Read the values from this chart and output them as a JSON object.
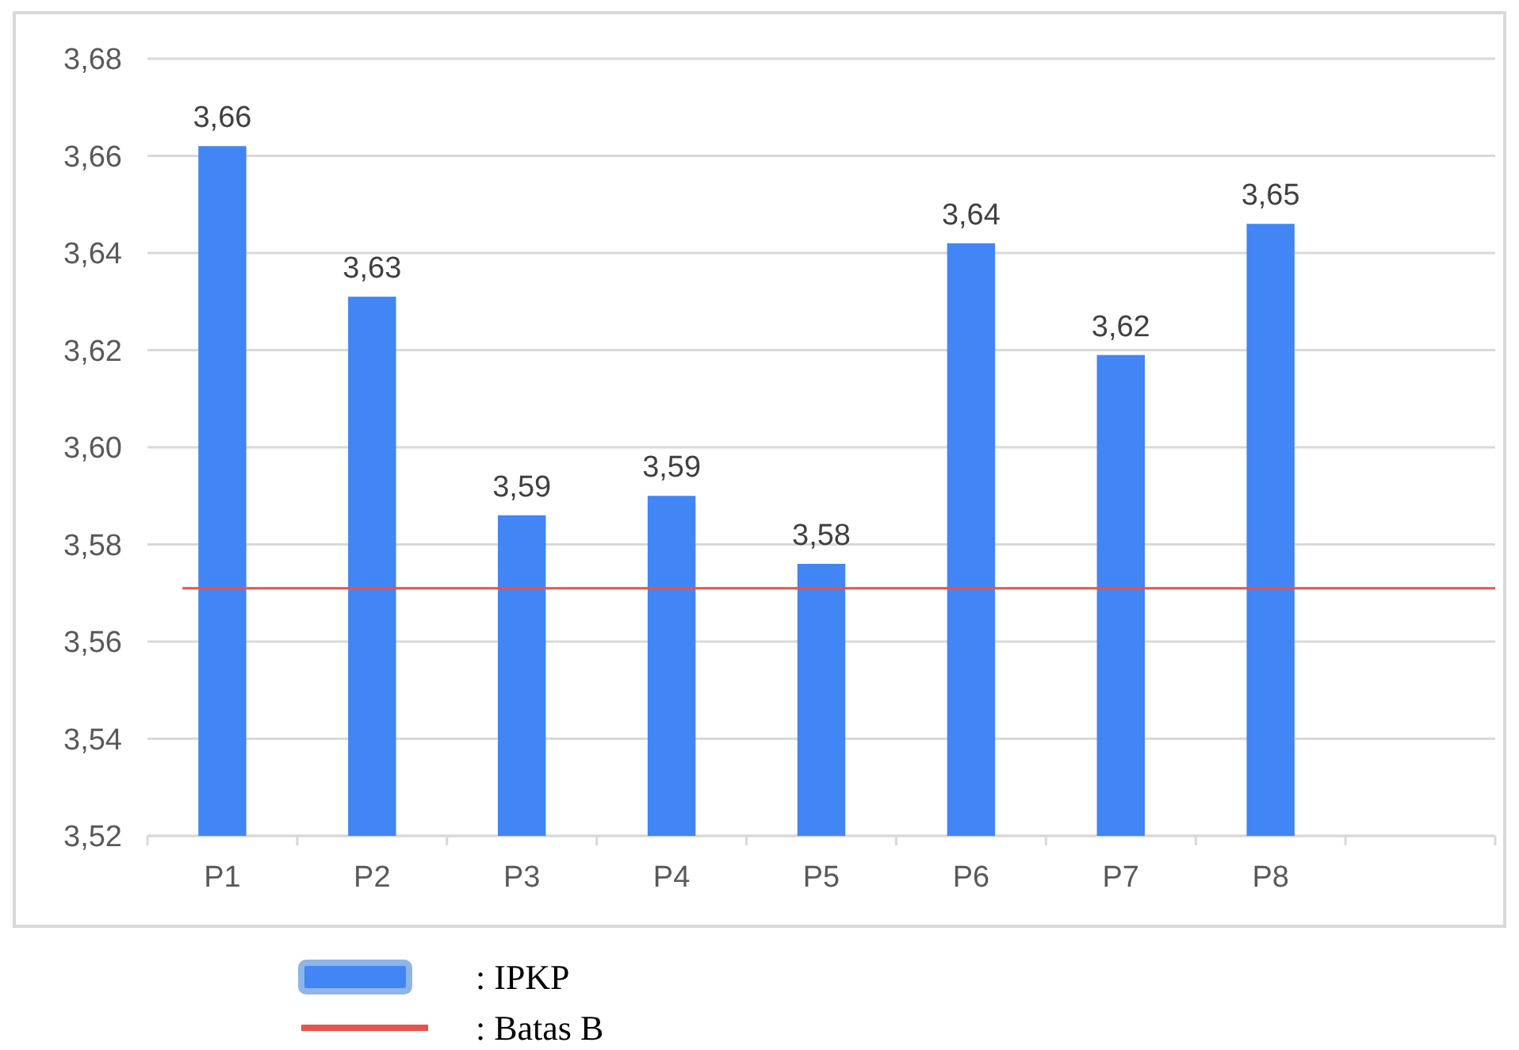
{
  "chart_data": {
    "type": "bar",
    "categories": [
      "P1",
      "P2",
      "P3",
      "P4",
      "P5",
      "P6",
      "P7",
      "P8",
      null
    ],
    "series": [
      {
        "name": ": IPKP",
        "color": "#4285f4",
        "values": [
          3.662,
          3.631,
          3.586,
          3.59,
          3.576,
          3.642,
          3.619,
          3.646,
          null
        ],
        "value_labels": [
          "3,66",
          "3,63",
          "3,59",
          "3,59",
          "3,58",
          "3,64",
          "3,62",
          "3,65",
          null
        ]
      }
    ],
    "ylim": [
      3.52,
      3.68
    ],
    "yticks": [
      {
        "value": 3.52,
        "label": "3,52"
      },
      {
        "value": 3.54,
        "label": "3,54"
      },
      {
        "value": 3.56,
        "label": "3,56"
      },
      {
        "value": 3.58,
        "label": "3,58"
      },
      {
        "value": 3.6,
        "label": "3,60"
      },
      {
        "value": 3.62,
        "label": "3,62"
      },
      {
        "value": 3.64,
        "label": "3,64"
      },
      {
        "value": 3.66,
        "label": "3,66"
      },
      {
        "value": 3.68,
        "label": "3,68"
      }
    ],
    "ref_lines": [
      {
        "axis": "y",
        "value": 3.571,
        "label": ": Batas B",
        "color": "#e8534a"
      }
    ],
    "grid": "y",
    "legend": "bottom"
  }
}
